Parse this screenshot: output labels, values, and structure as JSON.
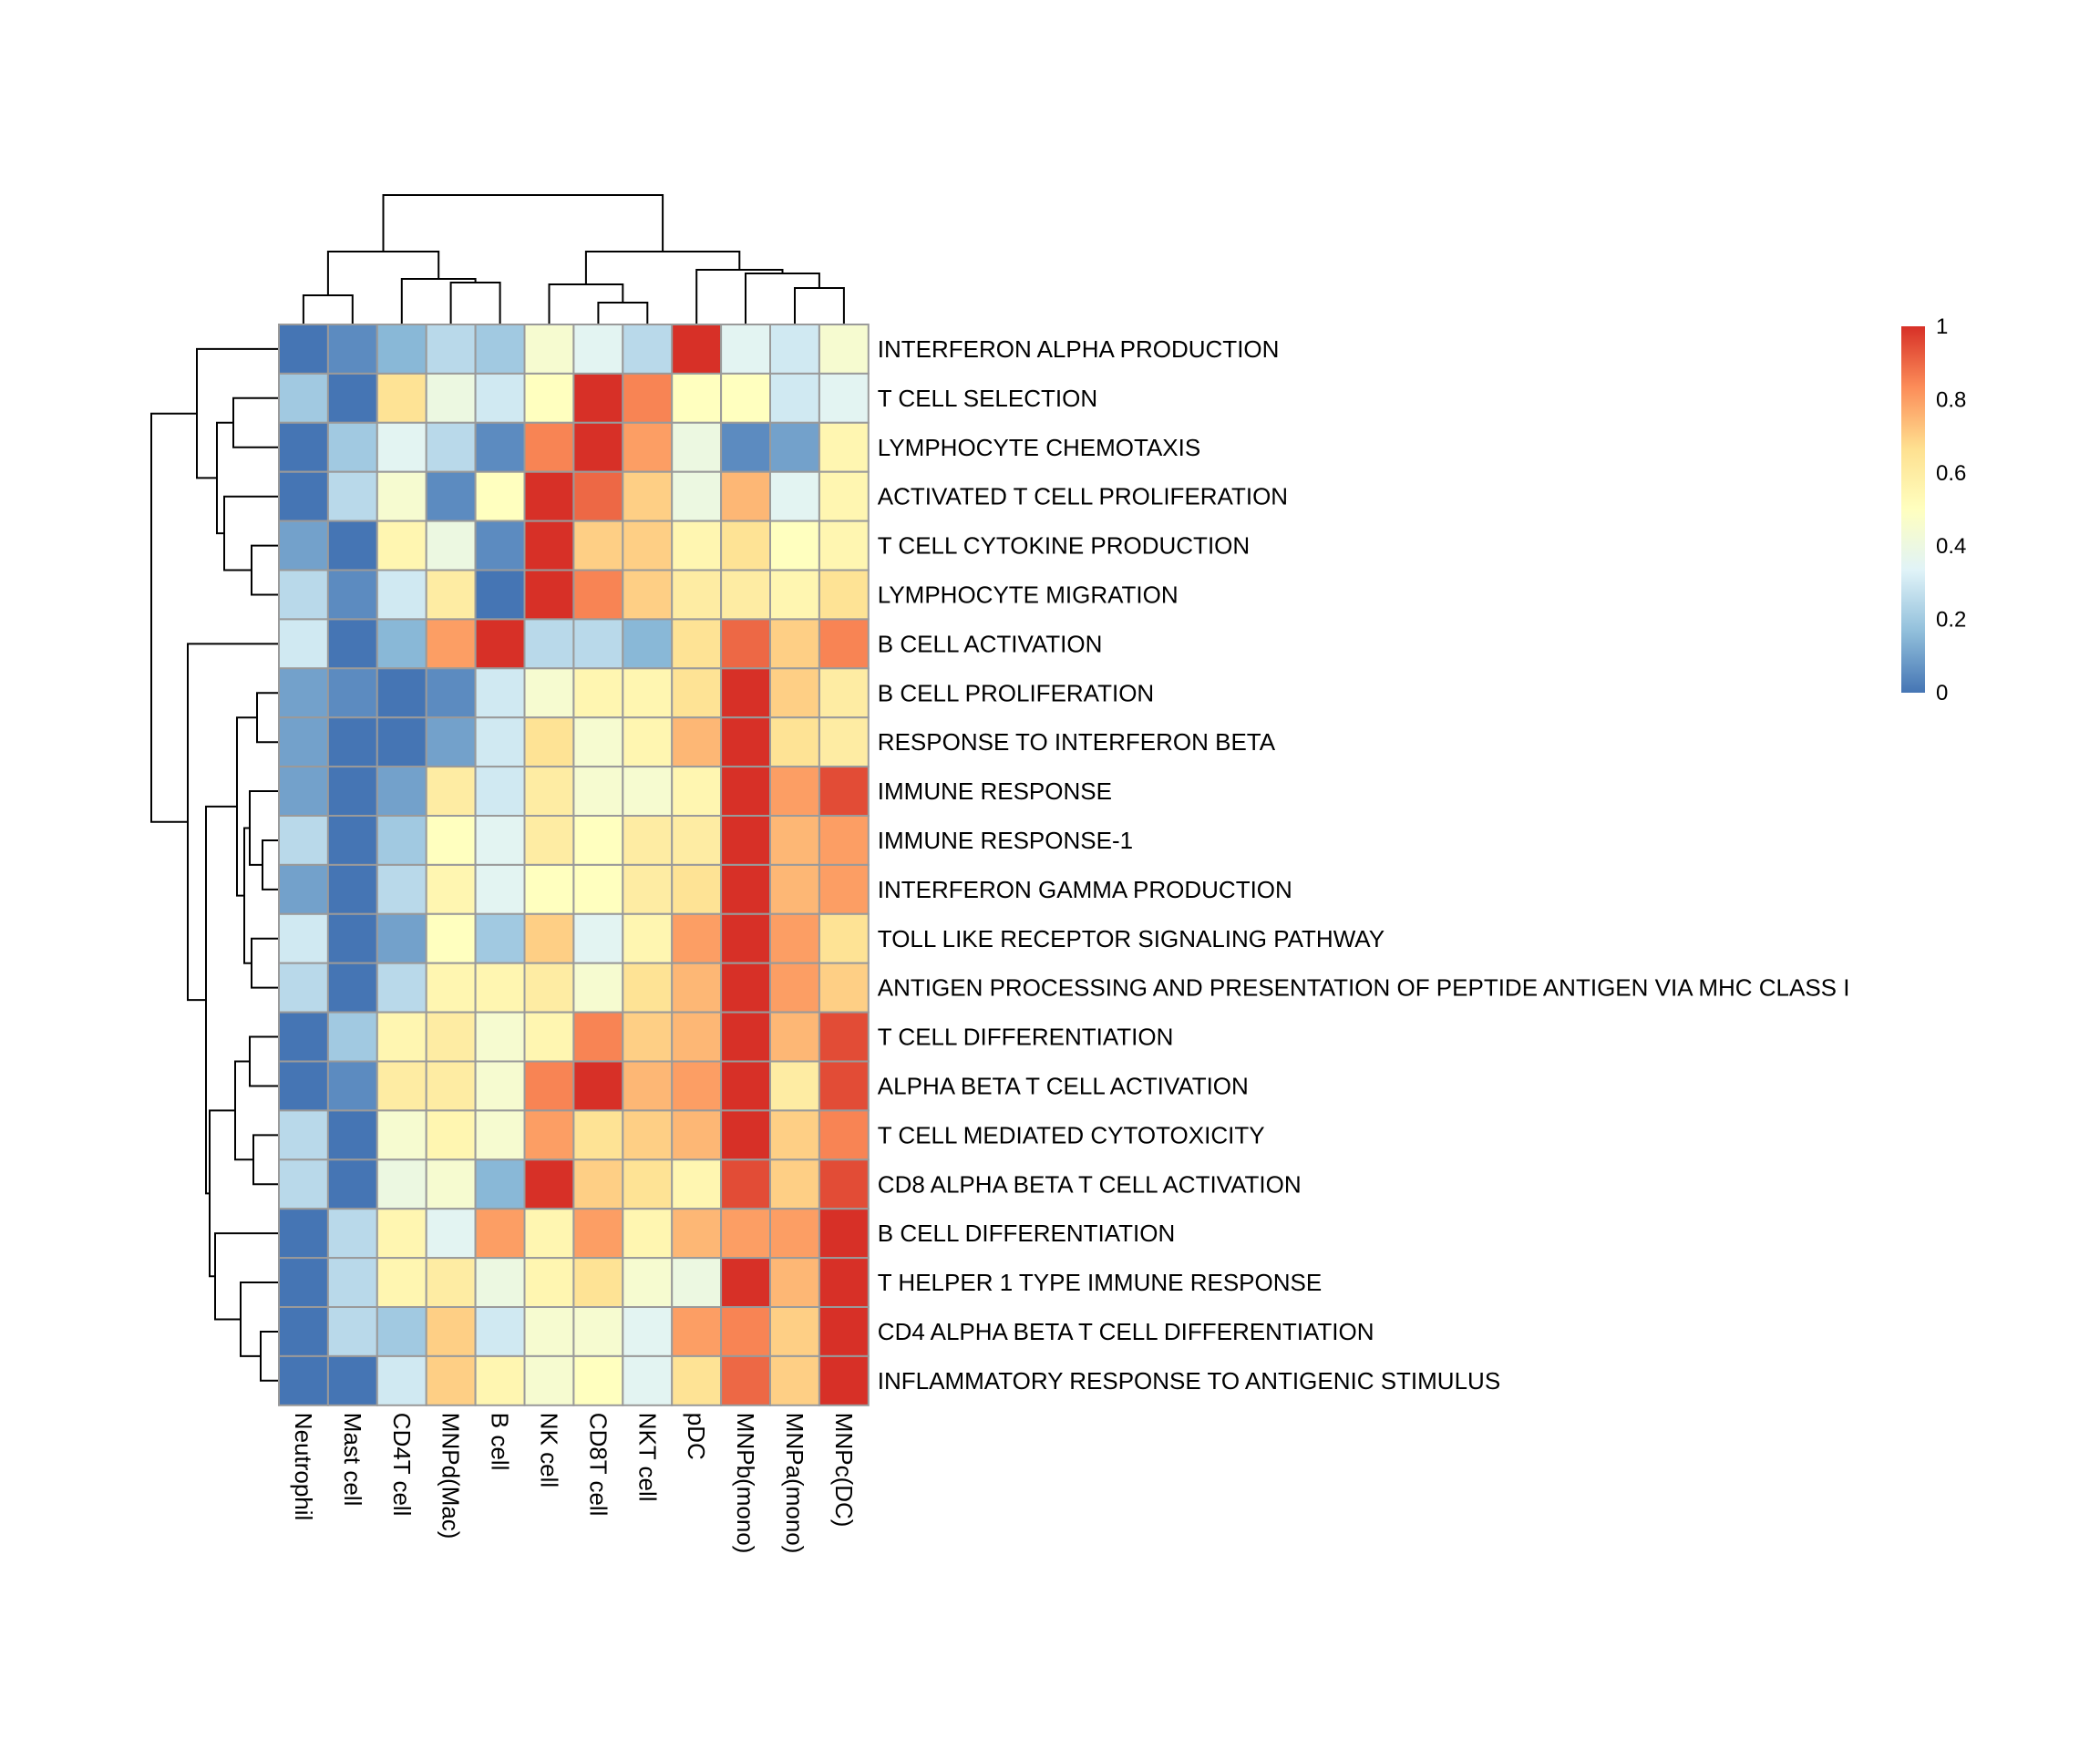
{
  "chart_data": {
    "type": "heatmap",
    "title": "",
    "columns": [
      "Neutrophil",
      "Mast cell",
      "CD4T cell",
      "MNPd(Mac)",
      "B cell",
      "NK cell",
      "CD8T cell",
      "NKT cell",
      "pDC",
      "MNPb(mono)",
      "MNPa(mono)",
      "MNPc(DC)"
    ],
    "rows": [
      "INTERFERON ALPHA PRODUCTION",
      "T CELL SELECTION",
      "LYMPHOCYTE CHEMOTAXIS",
      "ACTIVATED T CELL PROLIFERATION",
      "T CELL CYTOKINE PRODUCTION",
      "LYMPHOCYTE MIGRATION",
      "B CELL ACTIVATION",
      "B CELL PROLIFERATION",
      "RESPONSE TO INTERFERON BETA",
      "IMMUNE RESPONSE",
      "IMMUNE RESPONSE-1",
      "INTERFERON GAMMA PRODUCTION",
      "TOLL LIKE RECEPTOR SIGNALING PATHWAY",
      "ANTIGEN PROCESSING AND PRESENTATION OF PEPTIDE ANTIGEN VIA MHC CLASS I",
      "T CELL DIFFERENTIATION",
      "ALPHA BETA T CELL ACTIVATION",
      "T CELL MEDIATED CYTOTOXICITY",
      "CD8 ALPHA BETA T CELL ACTIVATION",
      "B CELL DIFFERENTIATION",
      "T HELPER 1 TYPE IMMUNE RESPONSE",
      "CD4 ALPHA BETA T CELL DIFFERENTIATION",
      "INFLAMMATORY RESPONSE TO ANTIGENIC STIMULUS"
    ],
    "values": [
      [
        0.0,
        0.05,
        0.15,
        0.25,
        0.2,
        0.45,
        0.35,
        0.25,
        1.0,
        0.35,
        0.3,
        0.45
      ],
      [
        0.2,
        0.0,
        0.65,
        0.4,
        0.3,
        0.5,
        1.0,
        0.85,
        0.5,
        0.5,
        0.3,
        0.35
      ],
      [
        0.0,
        0.2,
        0.35,
        0.25,
        0.05,
        0.85,
        1.0,
        0.8,
        0.4,
        0.05,
        0.1,
        0.55
      ],
      [
        0.0,
        0.25,
        0.45,
        0.05,
        0.5,
        1.0,
        0.9,
        0.7,
        0.4,
        0.75,
        0.35,
        0.55
      ],
      [
        0.1,
        0.0,
        0.55,
        0.4,
        0.05,
        1.0,
        0.7,
        0.7,
        0.55,
        0.65,
        0.5,
        0.55
      ],
      [
        0.25,
        0.05,
        0.3,
        0.6,
        0.0,
        1.0,
        0.85,
        0.7,
        0.6,
        0.6,
        0.55,
        0.65
      ],
      [
        0.3,
        0.0,
        0.15,
        0.8,
        1.0,
        0.25,
        0.25,
        0.15,
        0.65,
        0.9,
        0.7,
        0.85
      ],
      [
        0.1,
        0.05,
        0.0,
        0.05,
        0.3,
        0.45,
        0.55,
        0.55,
        0.65,
        1.0,
        0.7,
        0.6
      ],
      [
        0.1,
        0.0,
        0.0,
        0.1,
        0.3,
        0.65,
        0.45,
        0.55,
        0.75,
        1.0,
        0.65,
        0.6
      ],
      [
        0.1,
        0.0,
        0.1,
        0.6,
        0.3,
        0.6,
        0.45,
        0.45,
        0.55,
        1.0,
        0.8,
        0.95
      ],
      [
        0.25,
        0.0,
        0.2,
        0.5,
        0.35,
        0.6,
        0.5,
        0.6,
        0.6,
        1.0,
        0.75,
        0.8
      ],
      [
        0.1,
        0.0,
        0.25,
        0.55,
        0.35,
        0.5,
        0.5,
        0.6,
        0.65,
        1.0,
        0.75,
        0.8
      ],
      [
        0.3,
        0.0,
        0.1,
        0.5,
        0.2,
        0.7,
        0.35,
        0.55,
        0.8,
        1.0,
        0.8,
        0.65
      ],
      [
        0.25,
        0.0,
        0.25,
        0.55,
        0.55,
        0.6,
        0.45,
        0.65,
        0.75,
        1.0,
        0.8,
        0.7
      ],
      [
        0.0,
        0.2,
        0.55,
        0.6,
        0.45,
        0.55,
        0.85,
        0.7,
        0.75,
        1.0,
        0.75,
        0.95
      ],
      [
        0.0,
        0.05,
        0.6,
        0.6,
        0.45,
        0.85,
        1.0,
        0.75,
        0.8,
        1.0,
        0.6,
        0.95
      ],
      [
        0.25,
        0.0,
        0.45,
        0.55,
        0.45,
        0.8,
        0.65,
        0.7,
        0.75,
        1.0,
        0.7,
        0.85
      ],
      [
        0.25,
        0.0,
        0.4,
        0.45,
        0.15,
        1.0,
        0.7,
        0.65,
        0.55,
        0.95,
        0.7,
        0.95
      ],
      [
        0.0,
        0.25,
        0.55,
        0.35,
        0.8,
        0.55,
        0.8,
        0.55,
        0.75,
        0.8,
        0.8,
        1.0
      ],
      [
        0.0,
        0.25,
        0.55,
        0.6,
        0.4,
        0.55,
        0.65,
        0.45,
        0.4,
        1.0,
        0.75,
        1.0
      ],
      [
        0.0,
        0.25,
        0.2,
        0.7,
        0.3,
        0.45,
        0.45,
        0.35,
        0.8,
        0.85,
        0.7,
        1.0
      ],
      [
        0.0,
        0.0,
        0.3,
        0.7,
        0.55,
        0.45,
        0.5,
        0.35,
        0.65,
        0.9,
        0.7,
        1.0
      ]
    ],
    "color_scale": {
      "min": 0,
      "max": 1,
      "stops": [
        "#4575b4",
        "#91bfdb",
        "#e0f3f8",
        "#ffffbf",
        "#fee090",
        "#fc8d59",
        "#d73027"
      ],
      "tick_labels": [
        "0",
        "0.2",
        "0.4",
        "0.6",
        "0.8",
        "1"
      ]
    },
    "dendrograms": "row and column hierarchical clustering shown"
  }
}
